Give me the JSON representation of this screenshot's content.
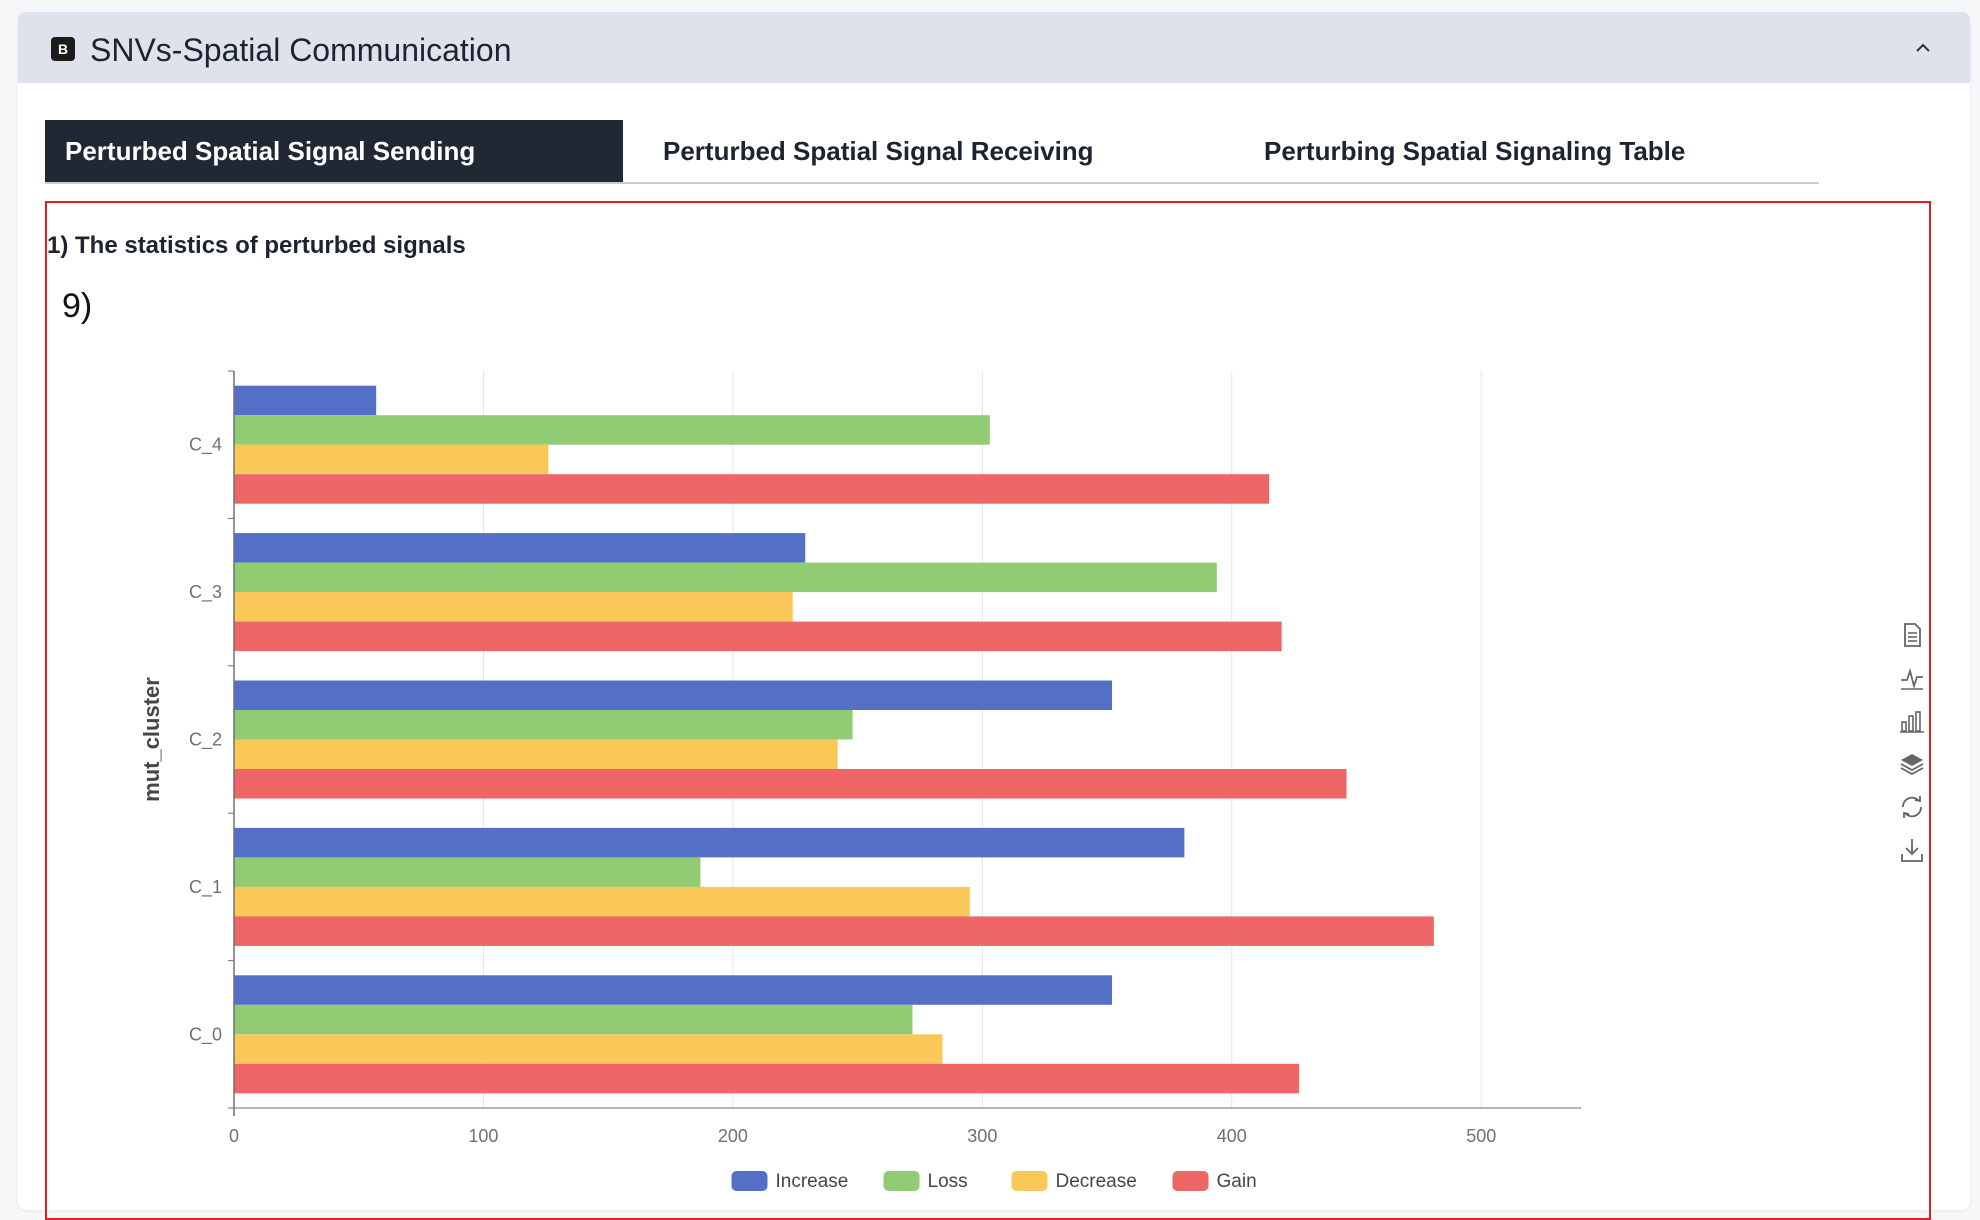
{
  "card": {
    "badge": "B",
    "title": "SNVs-Spatial Communication",
    "collapse_icon": "chevron-up-icon"
  },
  "tabs": [
    {
      "label": "Perturbed Spatial Signal Sending",
      "active": true
    },
    {
      "label": "Perturbed Spatial Signal Receiving",
      "active": false
    },
    {
      "label": "Perturbing Spatial Signaling Table",
      "active": false
    }
  ],
  "panel": {
    "heading": "1) The statistics of perturbed signals",
    "note": "9)"
  },
  "toolbox": [
    "data-view-icon",
    "line-chart-icon",
    "bar-chart-icon",
    "stack-icon",
    "restore-icon",
    "download-icon"
  ],
  "chart_data": {
    "type": "bar",
    "orientation": "horizontal",
    "categories": [
      "C_0",
      "C_1",
      "C_2",
      "C_3",
      "C_4"
    ],
    "series": [
      {
        "name": "Increase",
        "color": "#5470c6",
        "values": [
          352,
          381,
          352,
          229,
          57
        ]
      },
      {
        "name": "Loss",
        "color": "#91cc75",
        "values": [
          272,
          187,
          248,
          394,
          303
        ]
      },
      {
        "name": "Decrease",
        "color": "#fac858",
        "values": [
          284,
          295,
          242,
          224,
          126
        ]
      },
      {
        "name": "Gain",
        "color": "#ee6666",
        "values": [
          427,
          481,
          446,
          420,
          415
        ]
      }
    ],
    "x_ticks": [
      "0",
      "100",
      "200",
      "300",
      "400",
      "500"
    ],
    "xlim": [
      0,
      540
    ],
    "ylabel": "mut_cluster",
    "grid": true,
    "legend_position": "bottom"
  }
}
